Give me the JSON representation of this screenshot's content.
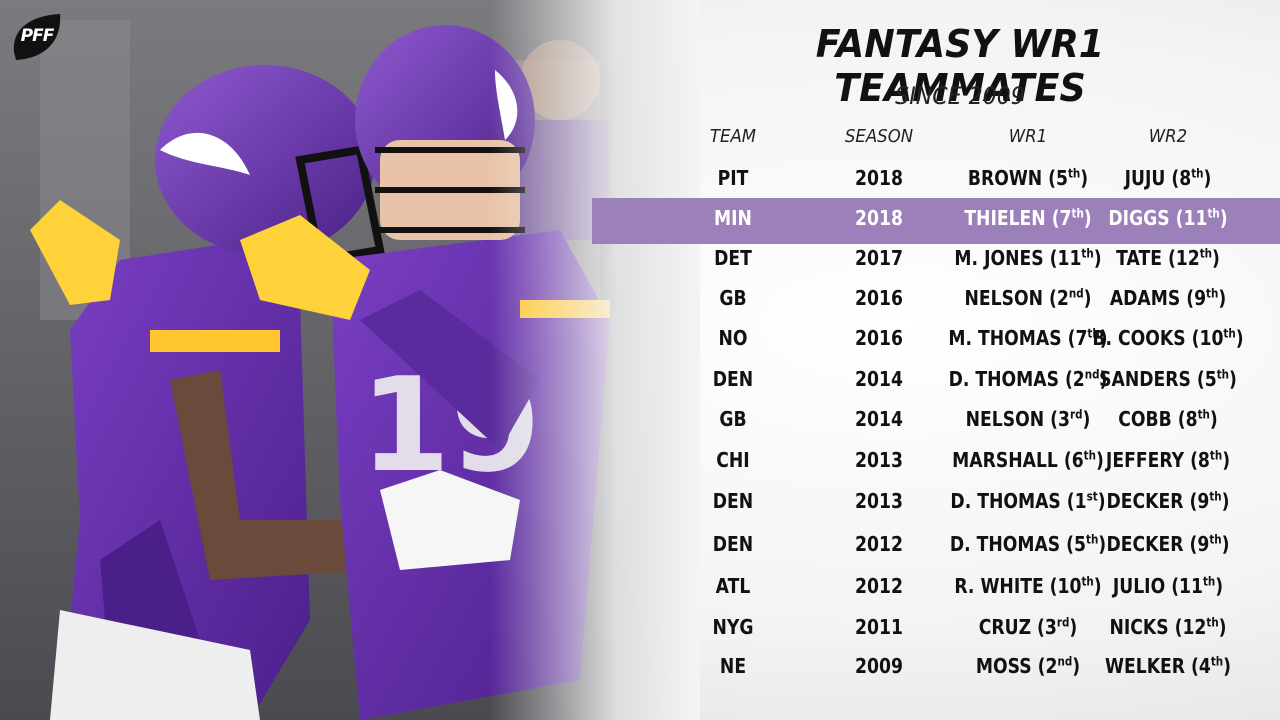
{
  "brand": {
    "logo_text": "PFF"
  },
  "title": "FANTASY WR1 TEAMMATES",
  "subtitle": "SINCE 2009",
  "columns": {
    "team": "TEAM",
    "season": "SEASON",
    "wr1": "WR1",
    "wr2": "WR2"
  },
  "rows": [
    {
      "team": "PIT",
      "season": "2018",
      "wr1": "BROWN (5th)",
      "wr2": "JUJU (8th)"
    },
    {
      "team": "MIN",
      "season": "2018",
      "wr1": "THIELEN (7th)",
      "wr2": "DIGGS (11th)",
      "highlighted": true
    },
    {
      "team": "DET",
      "season": "2017",
      "wr1": "M. JONES (11th)",
      "wr2": "TATE (12th)"
    },
    {
      "team": "GB",
      "season": "2016",
      "wr1": "NELSON (2nd)",
      "wr2": "ADAMS (9th)"
    },
    {
      "team": "NO",
      "season": "2016",
      "wr1": "M. THOMAS (7th)",
      "wr2": "B. COOKS (10th)"
    },
    {
      "team": "DEN",
      "season": "2014",
      "wr1": "D. THOMAS (2nd)",
      "wr2": "SANDERS (5th)"
    },
    {
      "team": "GB",
      "season": "2014",
      "wr1": "NELSON (3rd)",
      "wr2": "COBB (8th)"
    },
    {
      "team": "CHI",
      "season": "2013",
      "wr1": "MARSHALL (6th)",
      "wr2": "JEFFERY (8th)"
    },
    {
      "team": "DEN",
      "season": "2013",
      "wr1": "D. THOMAS (1st)",
      "wr2": "DECKER (9th)"
    },
    {
      "team": "DEN",
      "season": "2012",
      "wr1": "D. THOMAS (5th)",
      "wr2": "DECKER (9th)"
    },
    {
      "team": "ATL",
      "season": "2012",
      "wr1": "R. WHITE (10th)",
      "wr2": "JULIO (11th)"
    },
    {
      "team": "NYG",
      "season": "2011",
      "wr1": "CRUZ (3rd)",
      "wr2": "NICKS (12th)"
    },
    {
      "team": "NE",
      "season": "2009",
      "wr1": "MOSS (2nd)",
      "wr2": "WELKER (4th)"
    }
  ],
  "colors": {
    "highlight": "#9b80b9",
    "vikings_purple": "#4f2683",
    "vikings_gold": "#ffc62f"
  }
}
